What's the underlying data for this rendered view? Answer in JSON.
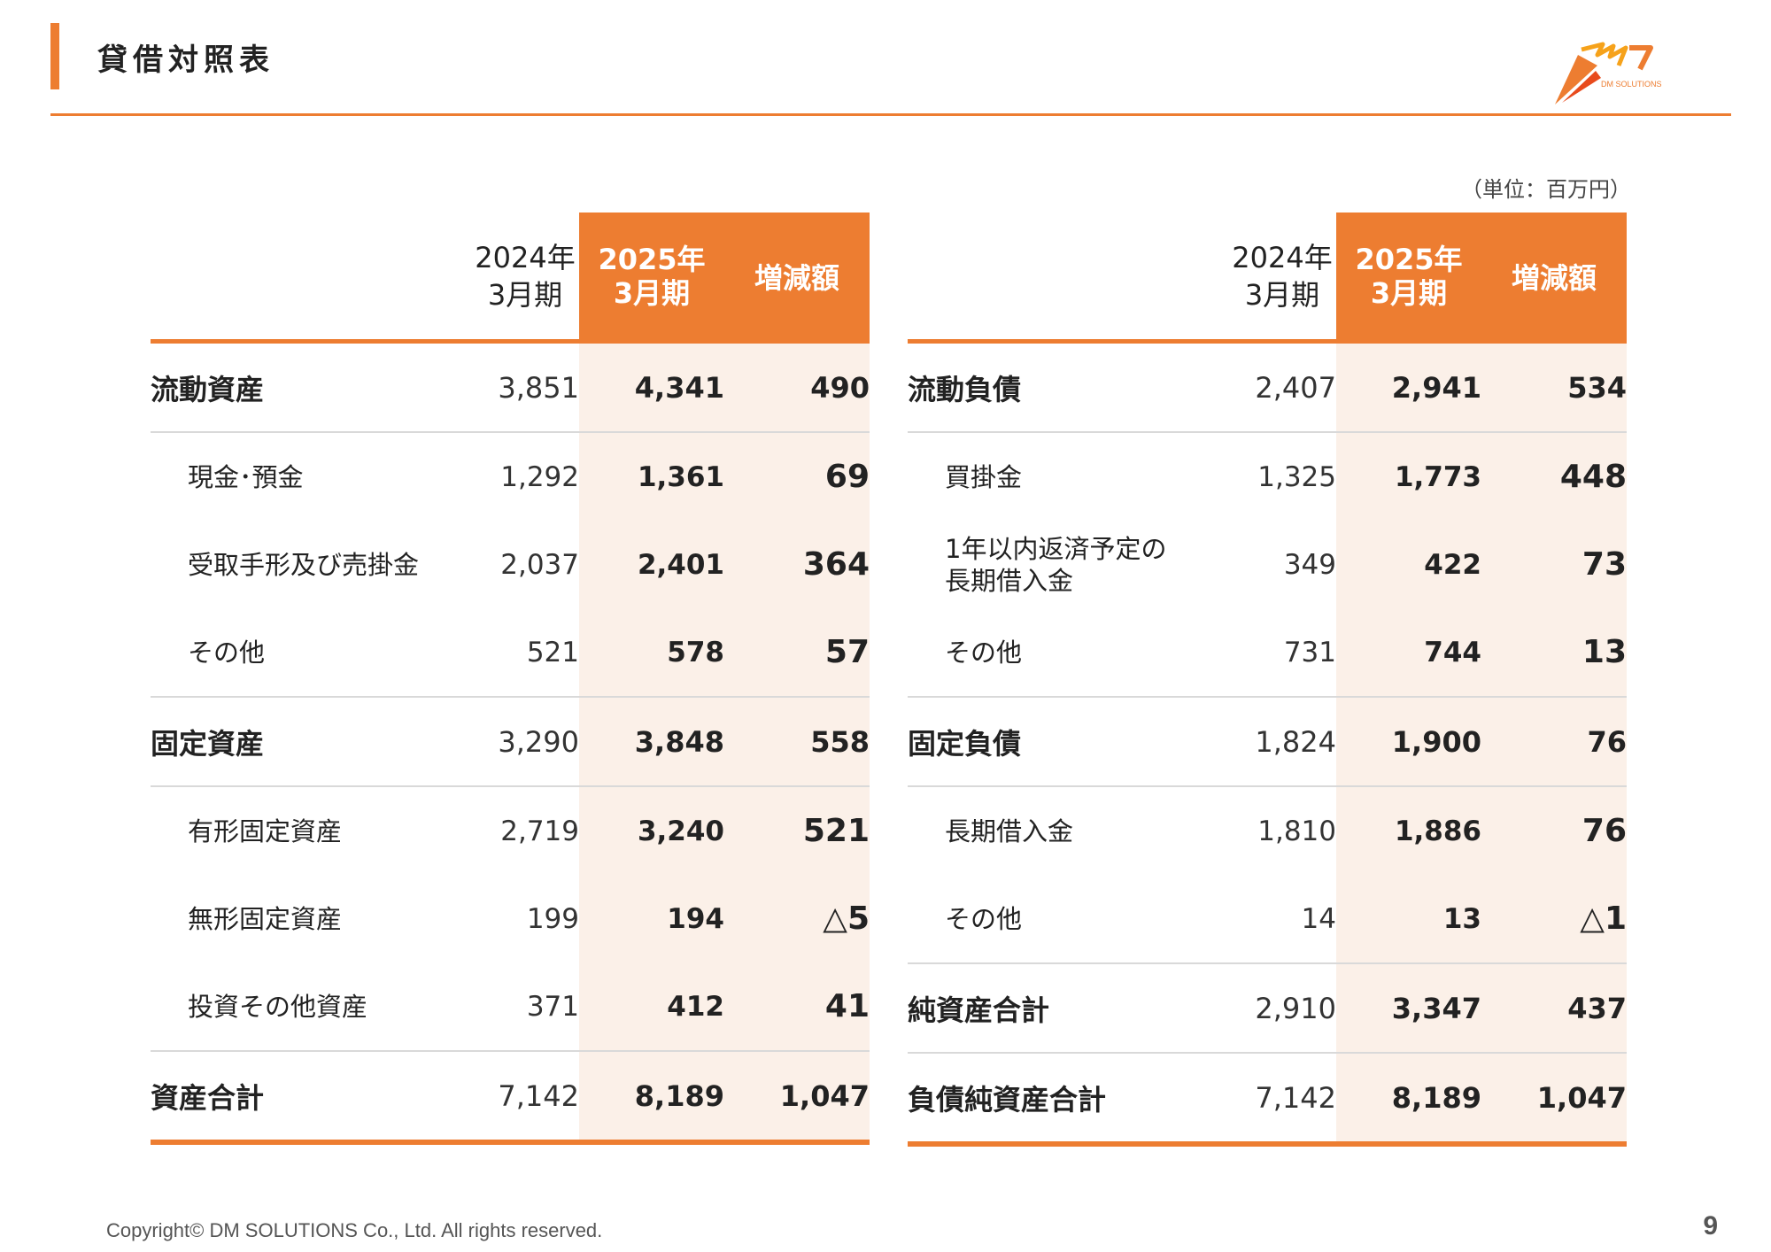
{
  "header": {
    "title": "貸借対照表"
  },
  "logo": {
    "text": "DM SOLUTIONS",
    "colors": [
      "#ed7d31",
      "#f6a21a",
      "#e84a1c"
    ]
  },
  "unit": "（単位：百万円）",
  "columns": {
    "prev": [
      "2024年",
      "3月期"
    ],
    "cur": [
      "2025年",
      "3月期"
    ],
    "diff": "増減額"
  },
  "assets": {
    "rows": [
      {
        "label": "流動資産",
        "prev": "3,851",
        "cur": "4,341",
        "diff": "490"
      },
      {
        "label": "現金･預金",
        "prev": "1,292",
        "cur": "1,361",
        "diff": "69"
      },
      {
        "label": "受取手形及び売掛金",
        "prev": "2,037",
        "cur": "2,401",
        "diff": "364"
      },
      {
        "label": "その他",
        "prev": "521",
        "cur": "578",
        "diff": "57"
      },
      {
        "label": "固定資産",
        "prev": "3,290",
        "cur": "3,848",
        "diff": "558"
      },
      {
        "label": "有形固定資産",
        "prev": "2,719",
        "cur": "3,240",
        "diff": "521"
      },
      {
        "label": "無形固定資産",
        "prev": "199",
        "cur": "194",
        "diff": "△5"
      },
      {
        "label": "投資その他資産",
        "prev": "371",
        "cur": "412",
        "diff": "41"
      },
      {
        "label": "資産合計",
        "prev": "7,142",
        "cur": "8,189",
        "diff": "1,047"
      }
    ]
  },
  "liabilities": {
    "rows": [
      {
        "label": "流動負債",
        "prev": "2,407",
        "cur": "2,941",
        "diff": "534"
      },
      {
        "label": "買掛金",
        "prev": "1,325",
        "cur": "1,773",
        "diff": "448"
      },
      {
        "label": [
          "1年以内返済予定の",
          "長期借入金"
        ],
        "prev": "349",
        "cur": "422",
        "diff": "73"
      },
      {
        "label": "その他",
        "prev": "731",
        "cur": "744",
        "diff": "13"
      },
      {
        "label": "固定負債",
        "prev": "1,824",
        "cur": "1,900",
        "diff": "76"
      },
      {
        "label": "長期借入金",
        "prev": "1,810",
        "cur": "1,886",
        "diff": "76"
      },
      {
        "label": "その他",
        "prev": "14",
        "cur": "13",
        "diff": "△1"
      },
      {
        "label": "純資産合計",
        "prev": "2,910",
        "cur": "3,347",
        "diff": "437"
      },
      {
        "label": "負債純資産合計",
        "prev": "7,142",
        "cur": "8,189",
        "diff": "1,047"
      }
    ]
  },
  "footer": {
    "copyright": "Copyright© DM SOLUTIONS Co., Ltd. All rights reserved.",
    "page": "9"
  }
}
